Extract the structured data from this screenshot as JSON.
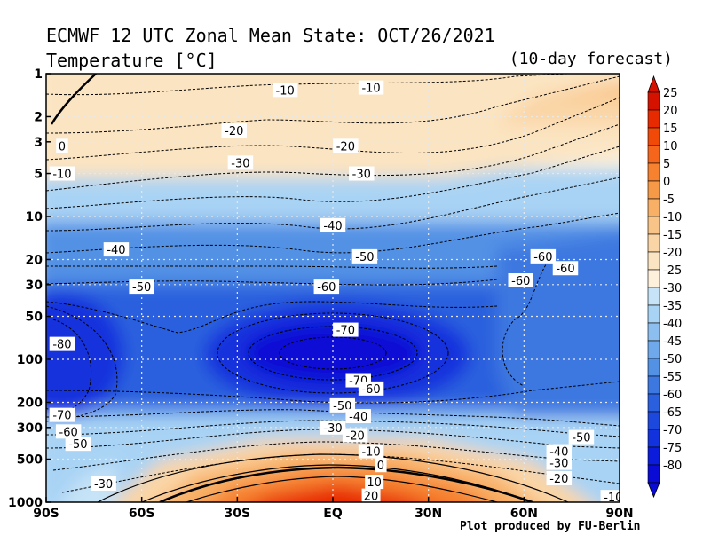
{
  "title": "ECMWF 12 UTC Zonal Mean State: OCT/26/2021",
  "subtitle": "Temperature [°C]",
  "forecast_note": "(10-day forecast)",
  "credit": "Plot produced by FU-Berlin",
  "chart_data": {
    "type": "contour",
    "variable": "Temperature [°C]",
    "x_ticks": [
      "90S",
      "60S",
      "30S",
      "EQ",
      "30N",
      "60N",
      "90N"
    ],
    "x_range": [
      -90,
      90
    ],
    "y_ticks": [
      "1",
      "2",
      "3",
      "5",
      "10",
      "20",
      "30",
      "50",
      "100",
      "200",
      "300",
      "500",
      "1000"
    ],
    "y_range_hpa": [
      1000,
      1
    ],
    "y_scale": "log",
    "grid": true,
    "colorbar_levels": [
      "25",
      "20",
      "15",
      "10",
      "5",
      "0",
      "-5",
      "-10",
      "-15",
      "-20",
      "-25",
      "-30",
      "-35",
      "-40",
      "-45",
      "-50",
      "-55",
      "-60",
      "-65",
      "-70",
      "-75",
      "-80"
    ],
    "colorbar_colors": [
      "#d51200",
      "#e82a00",
      "#f14a08",
      "#f5661c",
      "#f6812f",
      "#f79a47",
      "#f8b066",
      "#f9c487",
      "#fad5a6",
      "#fbe4c1",
      "#fdf1dc",
      "#c6e3f7",
      "#a9d3f4",
      "#8cbff0",
      "#6fa9eb",
      "#5391e5",
      "#3c78e0",
      "#2a60de",
      "#1c48dd",
      "#1232dd",
      "#0b1cdc",
      "#0a0cd6"
    ],
    "contour_labels": [
      {
        "text": "-10",
        "lat": -15,
        "p": 1.3
      },
      {
        "text": "-10",
        "lat": 12,
        "p": 1.25
      },
      {
        "text": "-20",
        "lat": -31,
        "p": 2.5
      },
      {
        "text": "-20",
        "lat": 4,
        "p": 3.2
      },
      {
        "text": "-30",
        "lat": -29,
        "p": 4.2
      },
      {
        "text": "-30",
        "lat": 9,
        "p": 5.0
      },
      {
        "text": "0",
        "lat": -85,
        "p": 3.2
      },
      {
        "text": "-10",
        "lat": -85,
        "p": 5.0
      },
      {
        "text": "-40",
        "lat": -68,
        "p": 17
      },
      {
        "text": "-40",
        "lat": 0,
        "p": 11.5
      },
      {
        "text": "-50",
        "lat": -60,
        "p": 31
      },
      {
        "text": "-50",
        "lat": 10,
        "p": 19
      },
      {
        "text": "-60",
        "lat": -2,
        "p": 31
      },
      {
        "text": "-60",
        "lat": 66,
        "p": 19
      },
      {
        "text": "-60",
        "lat": 73,
        "p": 23
      },
      {
        "text": "-60",
        "lat": 59,
        "p": 28
      },
      {
        "text": "-70",
        "lat": 4,
        "p": 62
      },
      {
        "text": "-70",
        "lat": 8,
        "p": 140
      },
      {
        "text": "-60",
        "lat": 12,
        "p": 160
      },
      {
        "text": "-80",
        "lat": -85,
        "p": 78
      },
      {
        "text": "-50",
        "lat": 3,
        "p": 210
      },
      {
        "text": "-40",
        "lat": 8,
        "p": 250
      },
      {
        "text": "-30",
        "lat": 0,
        "p": 300
      },
      {
        "text": "-20",
        "lat": 7,
        "p": 340
      },
      {
        "text": "-10",
        "lat": 12,
        "p": 440
      },
      {
        "text": "0",
        "lat": 15,
        "p": 550
      },
      {
        "text": "10",
        "lat": 13,
        "p": 720
      },
      {
        "text": "20",
        "lat": 12,
        "p": 900
      },
      {
        "text": "-70",
        "lat": -85,
        "p": 245
      },
      {
        "text": "-60",
        "lat": -83,
        "p": 320
      },
      {
        "text": "-50",
        "lat": -80,
        "p": 390
      },
      {
        "text": "-30",
        "lat": -72,
        "p": 740
      },
      {
        "text": "-50",
        "lat": 78,
        "p": 350
      },
      {
        "text": "-40",
        "lat": 71,
        "p": 440
      },
      {
        "text": "-30",
        "lat": 71,
        "p": 530
      },
      {
        "text": "-20",
        "lat": 71,
        "p": 680
      },
      {
        "text": "-10",
        "lat": 88,
        "p": 920
      }
    ]
  }
}
